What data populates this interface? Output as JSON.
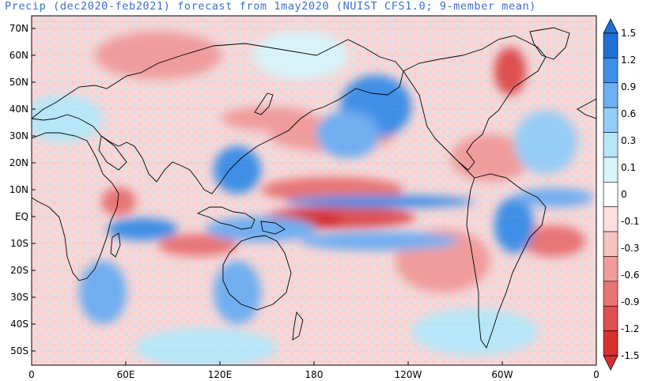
{
  "title": "Precip (dec2020-feb2021) forecast from 1may2020 (NUIST CFS1.0; 9-member mean)",
  "map": {
    "lat_labels": [
      "70N",
      "60N",
      "50N",
      "40N",
      "30N",
      "20N",
      "10N",
      "EQ",
      "10S",
      "20S",
      "30S",
      "40S",
      "50S"
    ],
    "lon_labels": [
      "0",
      "60E",
      "120E",
      "180",
      "120W",
      "60W",
      "0"
    ]
  },
  "colorbar": {
    "labels": [
      "1.5",
      "1.2",
      "0.9",
      "0.6",
      "0.3",
      "0.1",
      "0",
      "-0.1",
      "-0.3",
      "-0.6",
      "-0.9",
      "-1.2",
      "-1.5"
    ],
    "colors": [
      "#1f6fd6",
      "#3f8fe6",
      "#6faef0",
      "#95ccf5",
      "#b6e6f7",
      "#d8f4fa",
      "#ffffff",
      "#fbe0e0",
      "#f7c2c2",
      "#f09c9c",
      "#e87575",
      "#de4f4f",
      "#d63030"
    ]
  },
  "colors": {
    "title": "#3a6fd0",
    "wet": "#3f8fe6",
    "dry": "#de4f4f"
  }
}
